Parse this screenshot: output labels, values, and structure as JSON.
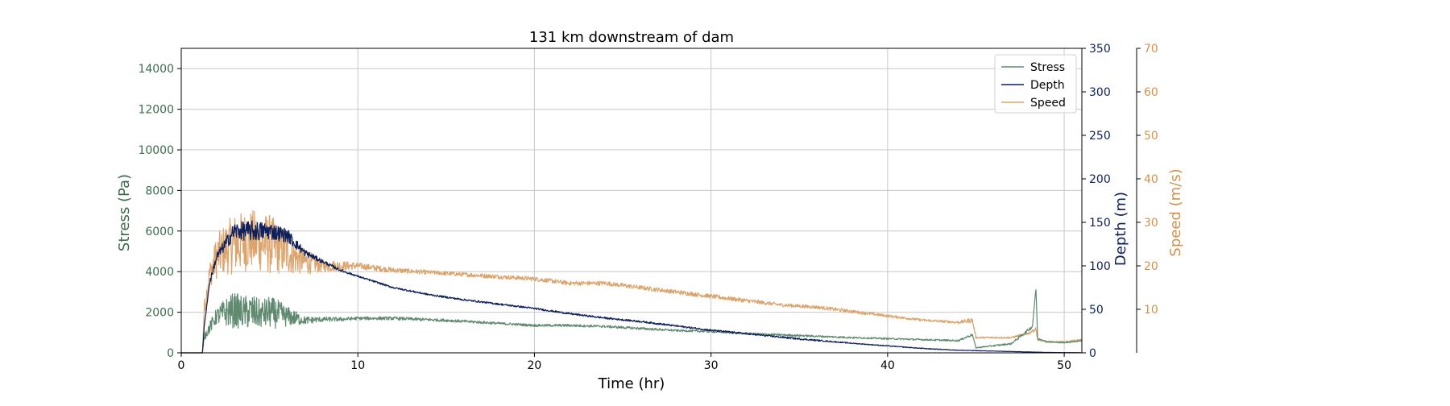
{
  "chart_data": {
    "type": "line",
    "title": "131 km downstream of dam",
    "xlabel": "Time (hr)",
    "xlim": [
      0,
      51
    ],
    "xticks": [
      0,
      10,
      20,
      30,
      40,
      50
    ],
    "grid": true,
    "legend_position": "top-right",
    "axes": {
      "stress": {
        "label": "Stress (Pa)",
        "ylim": [
          0,
          15000
        ],
        "ticks": [
          0,
          2000,
          4000,
          6000,
          8000,
          10000,
          12000,
          14000
        ],
        "color": "#3d6b4d"
      },
      "depth": {
        "label": "Depth (m)",
        "ylim": [
          0,
          350
        ],
        "ticks": [
          0,
          50,
          100,
          150,
          200,
          250,
          300,
          350
        ],
        "color": "#0d1f5c"
      },
      "speed": {
        "label": "Speed (m/s)",
        "ylim": [
          0,
          70
        ],
        "ticks": [
          10,
          20,
          30,
          40,
          50,
          60,
          70
        ],
        "color": "#d4914a"
      }
    },
    "series": [
      {
        "name": "Stress",
        "axis": "stress",
        "color": "#5f8a70",
        "x": [
          0,
          1.2,
          1.3,
          2,
          2.5,
          3,
          3.5,
          4,
          4.5,
          5,
          5.5,
          6,
          6.5,
          7,
          8,
          9,
          10,
          12,
          15,
          18,
          20,
          22,
          24,
          26,
          28,
          30,
          32,
          35,
          38,
          40,
          42,
          44,
          44.8,
          45,
          47,
          47.8,
          48.2,
          48.4,
          48.5,
          48.6,
          49,
          50,
          51
        ],
        "y": [
          0,
          0,
          800,
          1800,
          2000,
          2100,
          2000,
          2000,
          1900,
          2000,
          1900,
          1800,
          1700,
          1600,
          1650,
          1650,
          1700,
          1700,
          1600,
          1450,
          1350,
          1350,
          1300,
          1200,
          1100,
          1050,
          950,
          850,
          750,
          700,
          650,
          600,
          900,
          250,
          450,
          1000,
          1300,
          3200,
          600,
          700,
          550,
          500,
          600
        ],
        "noise": [
          0,
          0,
          200,
          400,
          700,
          900,
          800,
          900,
          700,
          800,
          700,
          500,
          350,
          200,
          120,
          100,
          80,
          80,
          70,
          60,
          60,
          60,
          60,
          60,
          50,
          50,
          50,
          50,
          40,
          40,
          40,
          40,
          60,
          30,
          40,
          80,
          80,
          0,
          40,
          40,
          30,
          30,
          30
        ]
      },
      {
        "name": "Depth",
        "axis": "depth",
        "color": "#0d1f5c",
        "x": [
          0,
          1.2,
          1.3,
          1.6,
          2,
          2.5,
          3,
          4,
          5,
          6,
          6.5,
          7,
          8,
          9,
          10,
          12,
          14,
          16,
          18,
          20,
          22,
          24,
          26,
          28,
          30,
          32,
          35,
          38,
          40,
          42,
          44,
          46,
          48,
          49,
          50,
          51
        ],
        "y": [
          0,
          0,
          30,
          80,
          110,
          125,
          140,
          140,
          140,
          135,
          125,
          115,
          105,
          95,
          88,
          75,
          67,
          61,
          56,
          51,
          45,
          40,
          36,
          31,
          26,
          22,
          16,
          11,
          8,
          5,
          3,
          2,
          1,
          0.5,
          0.3,
          0.2
        ],
        "noise": [
          0,
          0,
          0,
          3,
          5,
          7,
          10,
          12,
          10,
          8,
          6,
          4,
          2,
          1.5,
          1,
          1,
          1,
          1,
          1,
          1,
          1,
          1,
          1,
          1,
          1,
          1,
          1,
          0.5,
          0.5,
          0.5,
          0.3,
          0.2,
          0.2,
          0.1,
          0.1,
          0.1
        ]
      },
      {
        "name": "Speed",
        "axis": "speed",
        "color": "#dba46c",
        "x": [
          0,
          1.2,
          1.3,
          1.6,
          2,
          2.5,
          3,
          4,
          5,
          6,
          7,
          8,
          10,
          12,
          14,
          16,
          18,
          20,
          22,
          24,
          26,
          28,
          30,
          32,
          34,
          36,
          38,
          40,
          42,
          44,
          44.8,
          45,
          47,
          48,
          48.4,
          48.5,
          49,
          50,
          51
        ],
        "y": [
          0,
          0,
          10,
          18,
          22,
          24,
          25,
          26,
          25,
          23,
          21,
          20,
          20,
          19,
          18.5,
          18,
          17.5,
          17,
          16,
          16,
          15,
          14,
          13,
          12,
          11,
          10.5,
          9.5,
          8.5,
          7.5,
          7,
          7.5,
          3.5,
          3.5,
          4.5,
          5.5,
          3,
          2.5,
          2.5,
          3
        ],
        "noise": [
          0,
          0,
          2,
          3,
          5,
          6,
          7,
          7,
          7,
          5,
          3,
          1.5,
          0.8,
          0.6,
          0.5,
          0.5,
          0.5,
          0.5,
          0.5,
          0.5,
          0.5,
          0.5,
          0.5,
          0.5,
          0.4,
          0.4,
          0.4,
          0.3,
          0.3,
          0.3,
          0.6,
          0.2,
          0.2,
          0.3,
          0.4,
          0.2,
          0.2,
          0.2,
          0.2
        ]
      }
    ]
  }
}
